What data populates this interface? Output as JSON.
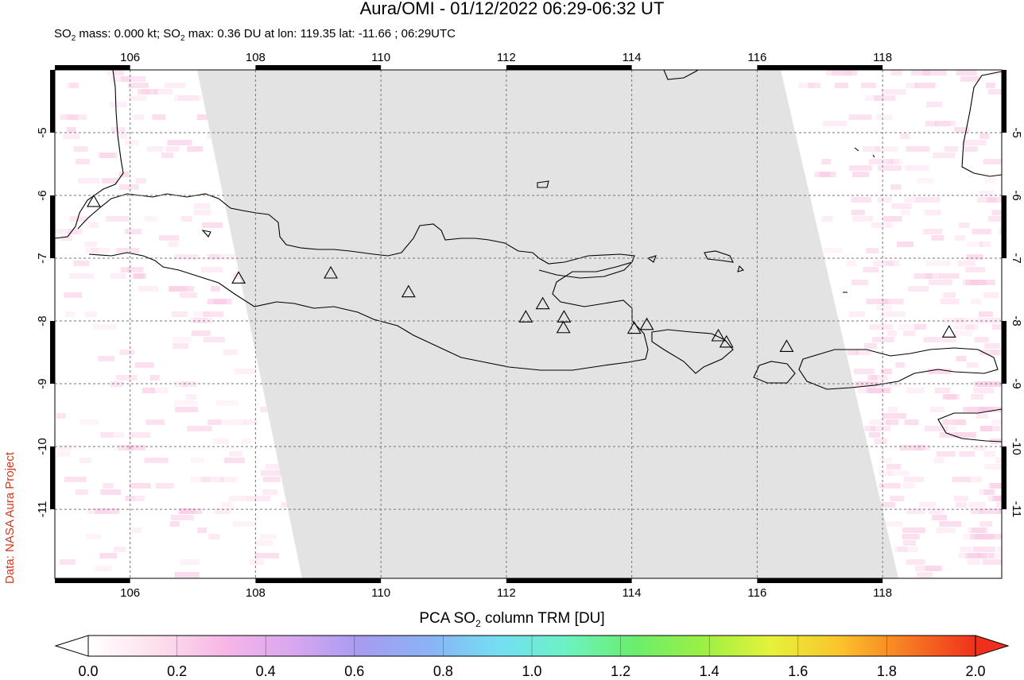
{
  "title": "Aura/OMI - 01/12/2022 06:29-06:32 UT",
  "subtitle": {
    "mass_prefix": "SO",
    "mass_sub": "2",
    "mass_text": " mass: 0.000 kt; SO",
    "max_sub": "2",
    "max_text": " max: 0.36 DU at lon: 119.35 lat: -11.66 ; 06:29UTC"
  },
  "side_credit": "Data: NASA Aura Project",
  "map": {
    "lon_range": [
      104.8,
      119.9
    ],
    "lat_range": [
      -12.1,
      -4.0
    ],
    "lon_ticks": [
      106,
      108,
      110,
      112,
      114,
      116,
      118
    ],
    "lat_ticks": [
      -5,
      -6,
      -7,
      -8,
      -9,
      -10,
      -11
    ],
    "lon_tick_labels": [
      "106",
      "108",
      "110",
      "112",
      "114",
      "116",
      "118"
    ],
    "lat_tick_labels": [
      "-5",
      "-6",
      "-7",
      "-8",
      "-9",
      "-10",
      "-11"
    ],
    "swath_color": "#e3e3e3",
    "volcanoes": [
      {
        "lon": 105.42,
        "lat": -6.1
      },
      {
        "lon": 107.73,
        "lat": -7.32
      },
      {
        "lon": 109.2,
        "lat": -7.24
      },
      {
        "lon": 110.44,
        "lat": -7.54
      },
      {
        "lon": 112.31,
        "lat": -7.94
      },
      {
        "lon": 112.58,
        "lat": -7.73
      },
      {
        "lon": 112.92,
        "lat": -7.94
      },
      {
        "lon": 112.91,
        "lat": -8.11
      },
      {
        "lon": 114.04,
        "lat": -8.12
      },
      {
        "lon": 114.24,
        "lat": -8.06
      },
      {
        "lon": 115.38,
        "lat": -8.24
      },
      {
        "lon": 115.51,
        "lat": -8.34
      },
      {
        "lon": 116.47,
        "lat": -8.41
      },
      {
        "lon": 119.06,
        "lat": -8.18
      }
    ]
  },
  "colorbar": {
    "title_prefix": "PCA SO",
    "title_sub": "2",
    "title_suffix": " column TRM [DU]",
    "min": 0.0,
    "max": 2.0,
    "tick_labels": [
      "0.0",
      "0.2",
      "0.4",
      "0.6",
      "0.8",
      "1.0",
      "1.2",
      "1.4",
      "1.6",
      "1.8",
      "2.0"
    ],
    "colors": [
      "#ffffff",
      "#fde0ec",
      "#f7b6e8",
      "#d9a6ef",
      "#a69cf0",
      "#8ab3f4",
      "#74def4",
      "#6cf2c4",
      "#6aee6e",
      "#9bf043",
      "#e6f23a",
      "#fbc42c",
      "#f77a22",
      "#f0301c"
    ]
  }
}
